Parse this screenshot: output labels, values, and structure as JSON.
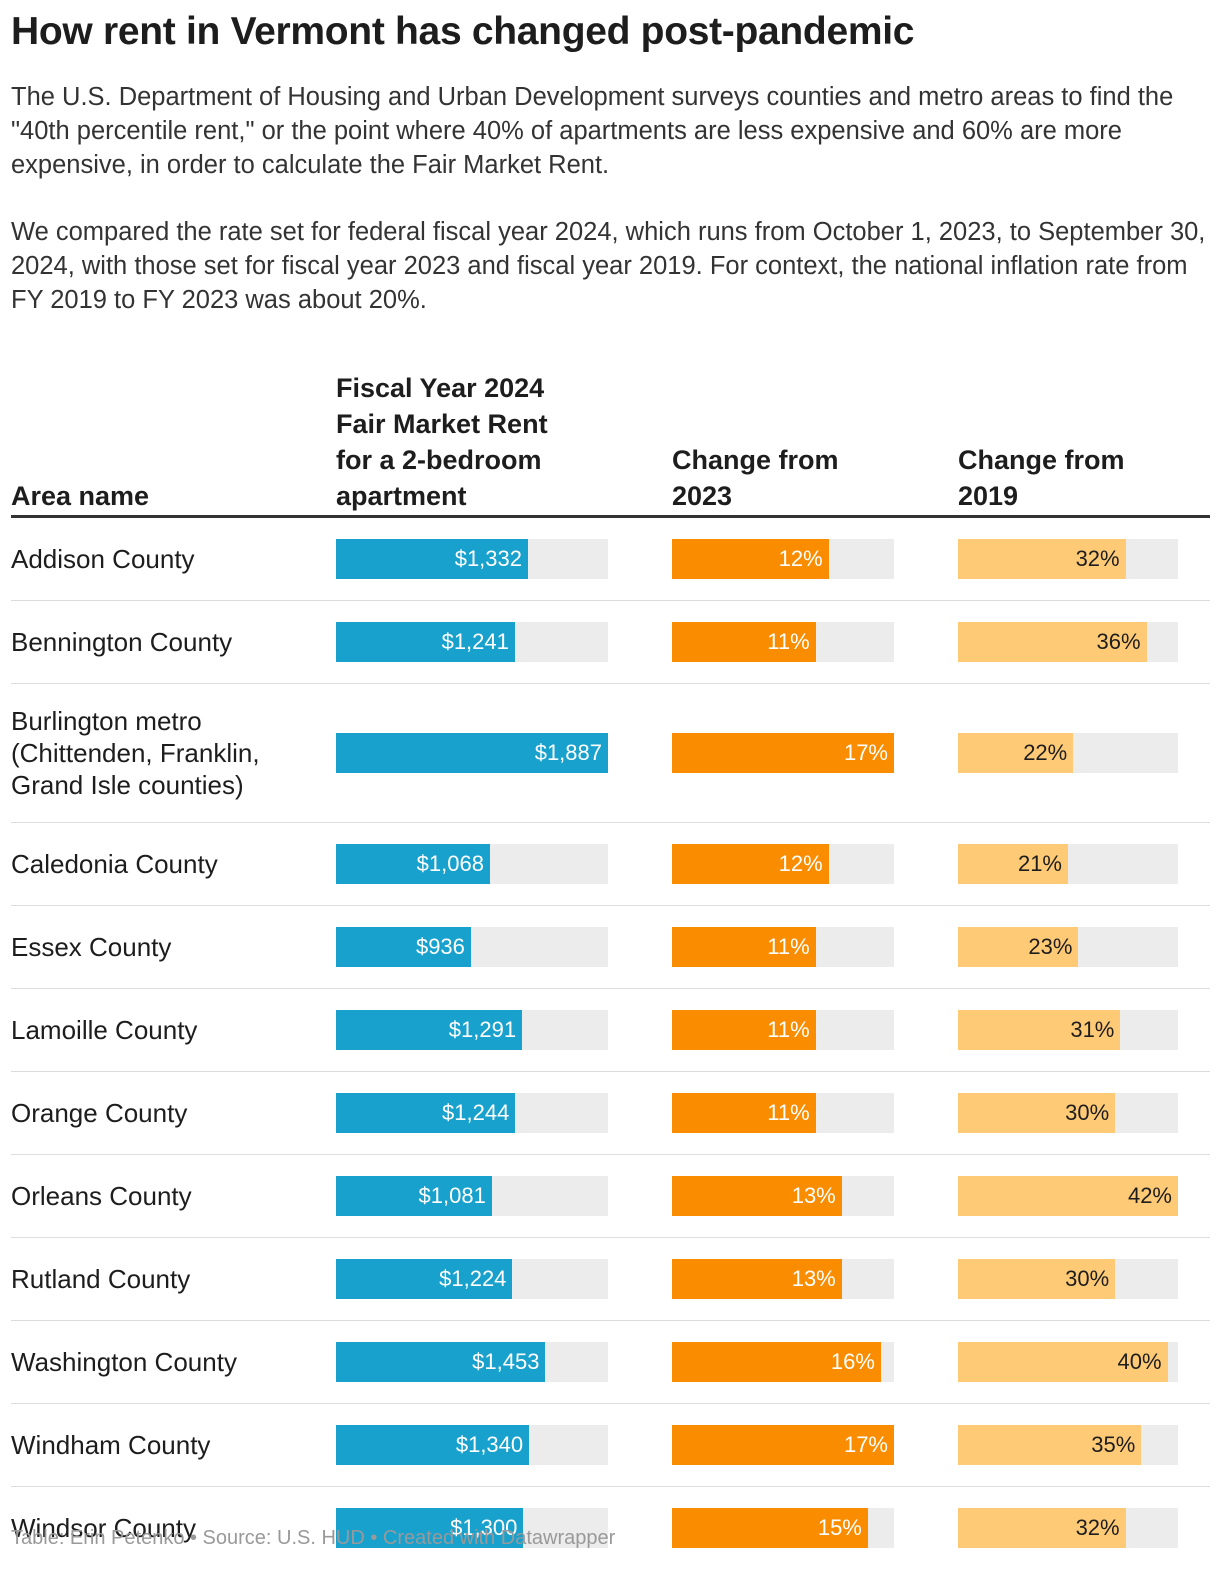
{
  "header": {
    "title": "How rent in Vermont has changed post-pandemic",
    "description": [
      "The U.S. Department of Housing and Urban Development surveys counties and metro areas to find the \"40th percentile rent,\" or the point where 40% of apartments are less expensive and 60% are more expensive, in order to calculate the Fair Market Rent.",
      "We compared the rate set for federal fiscal year 2024, which runs from October 1, 2023, to September 30, 2024, with those set for fiscal year 2023 and fiscal year 2019. For context, the national inflation rate from FY 2019 to FY 2023 was about 20%."
    ]
  },
  "table": {
    "columns": [
      "Area name",
      "Fiscal Year 2024 Fair Market Rent for a 2-bedroom apartment",
      "Change from 2023",
      "Change from 2019"
    ],
    "colors": [
      "#18a1cd",
      "#fa8c00",
      "#ffca76"
    ],
    "label_colors": [
      "#ffffff",
      "#ffffff",
      "#1d1d1d"
    ],
    "rows": [
      {
        "area": "Addison County",
        "rent": {
          "value": 1332,
          "label": "$1,332"
        },
        "change_2023": {
          "value": 12,
          "label": "12%"
        },
        "change_2019": {
          "value": 32,
          "label": "32%"
        }
      },
      {
        "area": "Bennington County",
        "rent": {
          "value": 1241,
          "label": "$1,241"
        },
        "change_2023": {
          "value": 11,
          "label": "11%"
        },
        "change_2019": {
          "value": 36,
          "label": "36%"
        }
      },
      {
        "area": "Burlington metro (Chittenden, Franklin, Grand Isle counties)",
        "rent": {
          "value": 1887,
          "label": "$1,887"
        },
        "change_2023": {
          "value": 17,
          "label": "17%"
        },
        "change_2019": {
          "value": 22,
          "label": "22%"
        }
      },
      {
        "area": "Caledonia County",
        "rent": {
          "value": 1068,
          "label": "$1,068"
        },
        "change_2023": {
          "value": 12,
          "label": "12%"
        },
        "change_2019": {
          "value": 21,
          "label": "21%"
        }
      },
      {
        "area": "Essex County",
        "rent": {
          "value": 936,
          "label": "$936"
        },
        "change_2023": {
          "value": 11,
          "label": "11%"
        },
        "change_2019": {
          "value": 23,
          "label": "23%"
        }
      },
      {
        "area": "Lamoille County",
        "rent": {
          "value": 1291,
          "label": "$1,291"
        },
        "change_2023": {
          "value": 11,
          "label": "11%"
        },
        "change_2019": {
          "value": 31,
          "label": "31%"
        }
      },
      {
        "area": "Orange County",
        "rent": {
          "value": 1244,
          "label": "$1,244"
        },
        "change_2023": {
          "value": 11,
          "label": "11%"
        },
        "change_2019": {
          "value": 30,
          "label": "30%"
        }
      },
      {
        "area": "Orleans County",
        "rent": {
          "value": 1081,
          "label": "$1,081"
        },
        "change_2023": {
          "value": 13,
          "label": "13%"
        },
        "change_2019": {
          "value": 42,
          "label": "42%"
        }
      },
      {
        "area": "Rutland County",
        "rent": {
          "value": 1224,
          "label": "$1,224"
        },
        "change_2023": {
          "value": 13,
          "label": "13%"
        },
        "change_2019": {
          "value": 30,
          "label": "30%"
        }
      },
      {
        "area": "Washington County",
        "rent": {
          "value": 1453,
          "label": "$1,453"
        },
        "change_2023": {
          "value": 16,
          "label": "16%"
        },
        "change_2019": {
          "value": 40,
          "label": "40%"
        }
      },
      {
        "area": "Windham County",
        "rent": {
          "value": 1340,
          "label": "$1,340"
        },
        "change_2023": {
          "value": 17,
          "label": "17%"
        },
        "change_2019": {
          "value": 35,
          "label": "35%"
        }
      },
      {
        "area": "Windsor County",
        "rent": {
          "value": 1300,
          "label": "$1,300"
        },
        "change_2023": {
          "value": 15,
          "label": "15%"
        },
        "change_2019": {
          "value": 32,
          "label": "32%"
        }
      }
    ]
  },
  "footer": "Table: Erin Petenko • Source: U.S. HUD • Created with Datawrapper"
}
